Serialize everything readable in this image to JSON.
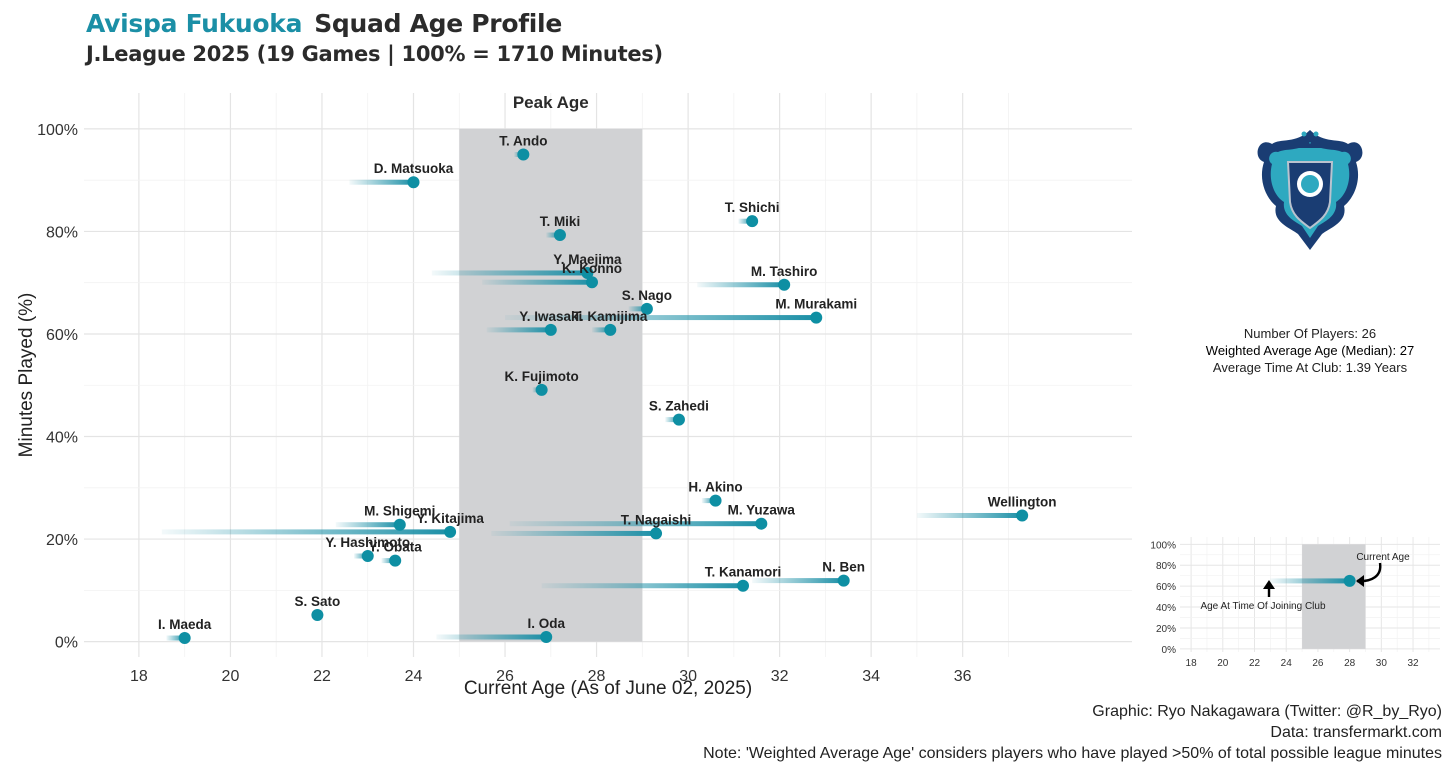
{
  "title": {
    "team": "Avispa Fukuoka",
    "text": "Squad Age Profile"
  },
  "subtitle": "J.League 2025 (19 Games | 100% = 1710 Minutes)",
  "chart_data": {
    "type": "scatter",
    "xlabel": "Current Age (As of June 02, 2025)",
    "ylabel": "Minutes Played (%)",
    "xlim": [
      16.8,
      39.7
    ],
    "ylim": [
      -3,
      107
    ],
    "xticks": [
      18,
      20,
      22,
      24,
      26,
      28,
      30,
      32,
      34,
      36
    ],
    "yticks": [
      0,
      20,
      40,
      60,
      80,
      100
    ],
    "ytick_labels": [
      "0%",
      "20%",
      "40%",
      "60%",
      "80%",
      "100%"
    ],
    "grid": true,
    "peak_age": {
      "label": "Peak Age",
      "from": 25,
      "to": 29
    },
    "series_note": "Each player: line from age at time of joining club to current age, point at current age",
    "players": [
      {
        "name": "T. Ando",
        "age": 26.4,
        "join_age": 26.2,
        "minutes_pct": 95
      },
      {
        "name": "D. Matsuoka",
        "age": 24.0,
        "join_age": 22.6,
        "minutes_pct": 89.6
      },
      {
        "name": "T. Shichi",
        "age": 31.4,
        "join_age": 31.1,
        "minutes_pct": 82
      },
      {
        "name": "T. Miki",
        "age": 27.2,
        "join_age": 26.9,
        "minutes_pct": 79.3
      },
      {
        "name": "Y. Maejima",
        "age": 27.8,
        "join_age": 24.4,
        "minutes_pct": 71.9
      },
      {
        "name": "K. Konno",
        "age": 27.9,
        "join_age": 25.5,
        "minutes_pct": 70.1
      },
      {
        "name": "M. Tashiro",
        "age": 32.1,
        "join_age": 30.2,
        "minutes_pct": 69.6
      },
      {
        "name": "S. Nago",
        "age": 29.1,
        "join_age": 28.7,
        "minutes_pct": 64.9
      },
      {
        "name": "M. Murakami",
        "age": 32.8,
        "join_age": 26.0,
        "minutes_pct": 63.2
      },
      {
        "name": "Y. Iwasaki",
        "age": 27.0,
        "join_age": 25.6,
        "minutes_pct": 60.8
      },
      {
        "name": "T. Kamijima",
        "age": 28.3,
        "join_age": 27.9,
        "minutes_pct": 60.8
      },
      {
        "name": "K. Fujimoto",
        "age": 26.8,
        "join_age": 26.6,
        "minutes_pct": 49.1
      },
      {
        "name": "S. Zahedi",
        "age": 29.8,
        "join_age": 29.5,
        "minutes_pct": 43.3
      },
      {
        "name": "H. Akino",
        "age": 30.6,
        "join_age": 30.3,
        "minutes_pct": 27.5
      },
      {
        "name": "Wellington",
        "age": 37.3,
        "join_age": 35.0,
        "minutes_pct": 24.6
      },
      {
        "name": "M. Yuzawa",
        "age": 31.6,
        "join_age": 26.1,
        "minutes_pct": 23
      },
      {
        "name": "M. Shigemi",
        "age": 23.7,
        "join_age": 22.3,
        "minutes_pct": 22.8
      },
      {
        "name": "Y. Kitajima",
        "age": 24.8,
        "join_age": 18.5,
        "minutes_pct": 21.4
      },
      {
        "name": "T. Nagaishi",
        "age": 29.3,
        "join_age": 25.7,
        "minutes_pct": 21.1
      },
      {
        "name": "Y. Hashimoto",
        "age": 23.0,
        "join_age": 22.7,
        "minutes_pct": 16.7
      },
      {
        "name": "Y. Obata",
        "age": 23.6,
        "join_age": 23.3,
        "minutes_pct": 15.8
      },
      {
        "name": "N. Ben",
        "age": 33.4,
        "join_age": 31.4,
        "minutes_pct": 11.9
      },
      {
        "name": "T. Kanamori",
        "age": 31.2,
        "join_age": 26.8,
        "minutes_pct": 10.9
      },
      {
        "name": "S. Sato",
        "age": 21.9,
        "join_age": 21.9,
        "minutes_pct": 5.2
      },
      {
        "name": "I. Maeda",
        "age": 19.0,
        "join_age": 18.6,
        "minutes_pct": 0.7
      },
      {
        "name": "I. Oda",
        "age": 26.9,
        "join_age": 24.5,
        "minutes_pct": 0.9
      }
    ]
  },
  "stats": {
    "players": "Number Of Players: 26",
    "weighted": "Weighted Average Age (Median): 27",
    "tenure": "Average Time At Club: 1.39 Years"
  },
  "legend_chart": {
    "xlim": [
      17.3,
      33.7
    ],
    "ylim": [
      -3,
      107
    ],
    "xticks": [
      18,
      20,
      22,
      24,
      26,
      28,
      30,
      32
    ],
    "yticks": [
      0,
      20,
      40,
      60,
      80,
      100
    ],
    "ytick_labels": [
      "0%",
      "20%",
      "40%",
      "60%",
      "80%",
      "100%"
    ],
    "peak_age": {
      "from": 25,
      "to": 29
    },
    "example": {
      "join_age": 23,
      "age": 28,
      "minutes_pct": 65
    },
    "current_label": "Current Age",
    "joining_label": "Age At Time Of Joining Club"
  },
  "credits": {
    "graphic": "Graphic: Ryo Nakagawara (Twitter: @R_by_Ryo)",
    "data": "Data: transfermarkt.com",
    "note": "Note: 'Weighted Average Age' considers players who have played >50% of total possible league minutes"
  },
  "colors": {
    "accent": "#1b8fa6",
    "point": "#0e8fa3",
    "peak": "#d1d2d4",
    "grid": "#e6e6e6"
  }
}
